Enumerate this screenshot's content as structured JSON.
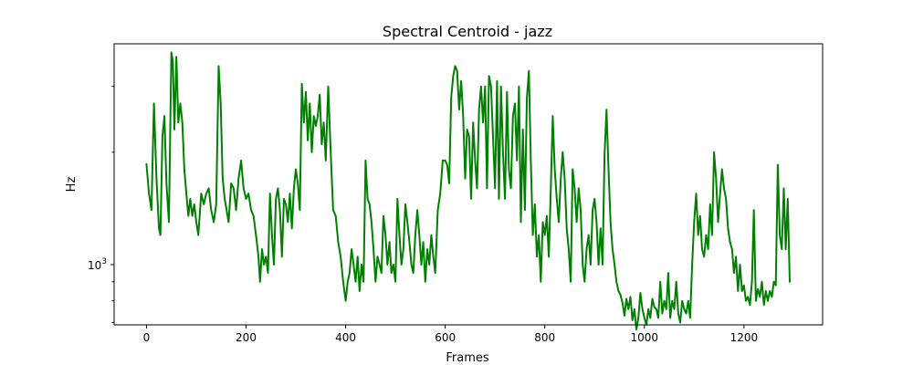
{
  "chart_data": {
    "type": "line",
    "title": "Spectral Centroid - jazz",
    "xlabel": "Frames",
    "ylabel": "Hz",
    "xlim": [
      -65,
      1358
    ],
    "ylim": [
      690,
      3900
    ],
    "yscale": "log",
    "x_ticks": [
      0,
      200,
      400,
      600,
      800,
      1000,
      1200
    ],
    "x_tick_labels": [
      "0",
      "200",
      "400",
      "600",
      "800",
      "1000",
      "1200"
    ],
    "y_major_ticks": [
      1000
    ],
    "y_major_tick_labels": [
      {
        "base": "10",
        "exp": "3"
      }
    ],
    "y_minor_ticks": [
      700,
      800,
      900,
      2000,
      3000
    ],
    "grid": false,
    "series": [
      {
        "color": "#008000",
        "points": [
          [
            0,
            1860
          ],
          [
            5,
            1550
          ],
          [
            10,
            1400
          ],
          [
            15,
            2700
          ],
          [
            20,
            1700
          ],
          [
            25,
            1250
          ],
          [
            28,
            1200
          ],
          [
            32,
            2200
          ],
          [
            36,
            2500
          ],
          [
            40,
            1650
          ],
          [
            45,
            1300
          ],
          [
            50,
            3700
          ],
          [
            53,
            3500
          ],
          [
            56,
            2300
          ],
          [
            60,
            3600
          ],
          [
            64,
            2400
          ],
          [
            68,
            2700
          ],
          [
            72,
            2400
          ],
          [
            76,
            1800
          ],
          [
            80,
            1550
          ],
          [
            84,
            1350
          ],
          [
            88,
            1500
          ],
          [
            92,
            1350
          ],
          [
            96,
            1450
          ],
          [
            100,
            1300
          ],
          [
            104,
            1200
          ],
          [
            110,
            1550
          ],
          [
            115,
            1450
          ],
          [
            120,
            1550
          ],
          [
            125,
            1600
          ],
          [
            130,
            1400
          ],
          [
            135,
            1300
          ],
          [
            140,
            1450
          ],
          [
            145,
            3400
          ],
          [
            149,
            2700
          ],
          [
            153,
            1700
          ],
          [
            157,
            1500
          ],
          [
            161,
            1400
          ],
          [
            165,
            1300
          ],
          [
            170,
            1650
          ],
          [
            175,
            1600
          ],
          [
            180,
            1400
          ],
          [
            185,
            1700
          ],
          [
            190,
            1900
          ],
          [
            195,
            1600
          ],
          [
            200,
            1500
          ],
          [
            205,
            1550
          ],
          [
            210,
            1400
          ],
          [
            215,
            1350
          ],
          [
            220,
            1200
          ],
          [
            225,
            1050
          ],
          [
            228,
            900
          ],
          [
            232,
            1100
          ],
          [
            236,
            1000
          ],
          [
            240,
            1050
          ],
          [
            244,
            950
          ],
          [
            248,
            1550
          ],
          [
            252,
            1200
          ],
          [
            256,
            1000
          ],
          [
            260,
            1500
          ],
          [
            264,
            1600
          ],
          [
            268,
            1400
          ],
          [
            272,
            1050
          ],
          [
            276,
            1500
          ],
          [
            280,
            1450
          ],
          [
            284,
            1300
          ],
          [
            288,
            1550
          ],
          [
            292,
            1250
          ],
          [
            296,
            1600
          ],
          [
            300,
            1800
          ],
          [
            304,
            1650
          ],
          [
            308,
            1400
          ],
          [
            312,
            3050
          ],
          [
            316,
            2400
          ],
          [
            320,
            2900
          ],
          [
            324,
            2150
          ],
          [
            328,
            2700
          ],
          [
            332,
            2000
          ],
          [
            336,
            2500
          ],
          [
            340,
            2350
          ],
          [
            344,
            2500
          ],
          [
            348,
            2850
          ],
          [
            352,
            2100
          ],
          [
            356,
            2400
          ],
          [
            360,
            1900
          ],
          [
            365,
            3000
          ],
          [
            370,
            2000
          ],
          [
            375,
            1400
          ],
          [
            380,
            1350
          ],
          [
            385,
            1150
          ],
          [
            390,
            1050
          ],
          [
            395,
            900
          ],
          [
            400,
            800
          ],
          [
            404,
            900
          ],
          [
            408,
            950
          ],
          [
            412,
            1100
          ],
          [
            416,
            1000
          ],
          [
            420,
            900
          ],
          [
            424,
            1050
          ],
          [
            428,
            850
          ],
          [
            432,
            1000
          ],
          [
            436,
            900
          ],
          [
            440,
            1900
          ],
          [
            444,
            1500
          ],
          [
            448,
            1450
          ],
          [
            452,
            1300
          ],
          [
            456,
            1100
          ],
          [
            460,
            900
          ],
          [
            464,
            1050
          ],
          [
            468,
            1000
          ],
          [
            472,
            950
          ],
          [
            476,
            1350
          ],
          [
            480,
            1200
          ],
          [
            484,
            1000
          ],
          [
            488,
            1150
          ],
          [
            492,
            950
          ],
          [
            496,
            1000
          ],
          [
            500,
            900
          ],
          [
            504,
            1500
          ],
          [
            508,
            1200
          ],
          [
            512,
            1000
          ],
          [
            516,
            1100
          ],
          [
            520,
            1450
          ],
          [
            524,
            1300
          ],
          [
            528,
            1150
          ],
          [
            532,
            1000
          ],
          [
            536,
            950
          ],
          [
            540,
            1200
          ],
          [
            544,
            1400
          ],
          [
            548,
            1200
          ],
          [
            552,
            1000
          ],
          [
            556,
            1150
          ],
          [
            560,
            900
          ],
          [
            564,
            1100
          ],
          [
            568,
            1000
          ],
          [
            572,
            1200
          ],
          [
            576,
            1050
          ],
          [
            580,
            950
          ],
          [
            585,
            1400
          ],
          [
            590,
            1550
          ],
          [
            595,
            1900
          ],
          [
            600,
            1900
          ],
          [
            604,
            1850
          ],
          [
            608,
            1650
          ],
          [
            612,
            2800
          ],
          [
            616,
            3200
          ],
          [
            620,
            3400
          ],
          [
            624,
            3300
          ],
          [
            628,
            2600
          ],
          [
            632,
            3100
          ],
          [
            636,
            2500
          ],
          [
            640,
            1700
          ],
          [
            644,
            2300
          ],
          [
            648,
            2200
          ],
          [
            652,
            1500
          ],
          [
            656,
            2400
          ],
          [
            660,
            1900
          ],
          [
            664,
            1600
          ],
          [
            668,
            2600
          ],
          [
            672,
            3000
          ],
          [
            676,
            2400
          ],
          [
            680,
            3000
          ],
          [
            684,
            1600
          ],
          [
            688,
            3200
          ],
          [
            692,
            3000
          ],
          [
            696,
            2200
          ],
          [
            700,
            1600
          ],
          [
            704,
            3100
          ],
          [
            708,
            1500
          ],
          [
            712,
            3000
          ],
          [
            716,
            2000
          ],
          [
            720,
            1500
          ],
          [
            724,
            2900
          ],
          [
            728,
            1800
          ],
          [
            732,
            1600
          ],
          [
            736,
            2500
          ],
          [
            740,
            2700
          ],
          [
            744,
            1900
          ],
          [
            748,
            3000
          ],
          [
            752,
            1300
          ],
          [
            756,
            2300
          ],
          [
            760,
            1400
          ],
          [
            764,
            2800
          ],
          [
            768,
            3300
          ],
          [
            772,
            1900
          ],
          [
            776,
            1200
          ],
          [
            780,
            1450
          ],
          [
            784,
            1050
          ],
          [
            788,
            1200
          ],
          [
            792,
            900
          ],
          [
            796,
            1300
          ],
          [
            800,
            1200
          ],
          [
            804,
            1350
          ],
          [
            808,
            1050
          ],
          [
            812,
            1600
          ],
          [
            816,
            2500
          ],
          [
            820,
            1800
          ],
          [
            824,
            1500
          ],
          [
            828,
            1300
          ],
          [
            832,
            1700
          ],
          [
            836,
            2000
          ],
          [
            840,
            1700
          ],
          [
            844,
            1250
          ],
          [
            848,
            1100
          ],
          [
            852,
            900
          ],
          [
            856,
            1800
          ],
          [
            860,
            1600
          ],
          [
            864,
            1300
          ],
          [
            868,
            1600
          ],
          [
            872,
            1400
          ],
          [
            876,
            1000
          ],
          [
            880,
            900
          ],
          [
            884,
            1100
          ],
          [
            888,
            1200
          ],
          [
            892,
            1000
          ],
          [
            896,
            1400
          ],
          [
            900,
            1500
          ],
          [
            904,
            1300
          ],
          [
            908,
            1000
          ],
          [
            912,
            1250
          ],
          [
            916,
            1000
          ],
          [
            920,
            1950
          ],
          [
            924,
            2600
          ],
          [
            928,
            1800
          ],
          [
            932,
            1300
          ],
          [
            936,
            1100
          ],
          [
            940,
            1000
          ],
          [
            944,
            900
          ],
          [
            948,
            850
          ],
          [
            952,
            830
          ],
          [
            956,
            790
          ],
          [
            960,
            730
          ],
          [
            964,
            810
          ],
          [
            968,
            760
          ],
          [
            972,
            820
          ],
          [
            976,
            710
          ],
          [
            980,
            760
          ],
          [
            984,
            670
          ],
          [
            988,
            720
          ],
          [
            992,
            840
          ],
          [
            996,
            760
          ],
          [
            1000,
            720
          ],
          [
            1004,
            690
          ],
          [
            1008,
            760
          ],
          [
            1012,
            720
          ],
          [
            1016,
            810
          ],
          [
            1020,
            770
          ],
          [
            1024,
            760
          ],
          [
            1028,
            720
          ],
          [
            1032,
            900
          ],
          [
            1036,
            740
          ],
          [
            1040,
            800
          ],
          [
            1044,
            760
          ],
          [
            1048,
            950
          ],
          [
            1052,
            720
          ],
          [
            1056,
            800
          ],
          [
            1060,
            760
          ],
          [
            1064,
            900
          ],
          [
            1068,
            740
          ],
          [
            1072,
            700
          ],
          [
            1076,
            800
          ],
          [
            1080,
            760
          ],
          [
            1084,
            740
          ],
          [
            1088,
            800
          ],
          [
            1092,
            720
          ],
          [
            1096,
            1000
          ],
          [
            1100,
            1300
          ],
          [
            1104,
            1550
          ],
          [
            1108,
            1200
          ],
          [
            1112,
            1350
          ],
          [
            1116,
            1100
          ],
          [
            1120,
            1050
          ],
          [
            1124,
            1200
          ],
          [
            1128,
            1100
          ],
          [
            1132,
            1450
          ],
          [
            1136,
            1200
          ],
          [
            1140,
            2000
          ],
          [
            1144,
            1700
          ],
          [
            1148,
            1300
          ],
          [
            1152,
            1550
          ],
          [
            1156,
            1800
          ],
          [
            1160,
            1600
          ],
          [
            1164,
            1500
          ],
          [
            1168,
            1250
          ],
          [
            1172,
            1150
          ],
          [
            1176,
            1100
          ],
          [
            1180,
            950
          ],
          [
            1184,
            1050
          ],
          [
            1188,
            850
          ],
          [
            1192,
            1000
          ],
          [
            1196,
            850
          ],
          [
            1200,
            880
          ],
          [
            1204,
            800
          ],
          [
            1208,
            820
          ],
          [
            1212,
            780
          ],
          [
            1216,
            900
          ],
          [
            1220,
            1400
          ],
          [
            1224,
            800
          ],
          [
            1228,
            860
          ],
          [
            1232,
            820
          ],
          [
            1236,
            900
          ],
          [
            1240,
            780
          ],
          [
            1244,
            850
          ],
          [
            1248,
            800
          ],
          [
            1252,
            850
          ],
          [
            1256,
            820
          ],
          [
            1260,
            900
          ],
          [
            1264,
            880
          ],
          [
            1268,
            1850
          ],
          [
            1272,
            1200
          ],
          [
            1276,
            1100
          ],
          [
            1280,
            1600
          ],
          [
            1284,
            1100
          ],
          [
            1288,
            1500
          ],
          [
            1292,
            900
          ]
        ]
      }
    ]
  }
}
